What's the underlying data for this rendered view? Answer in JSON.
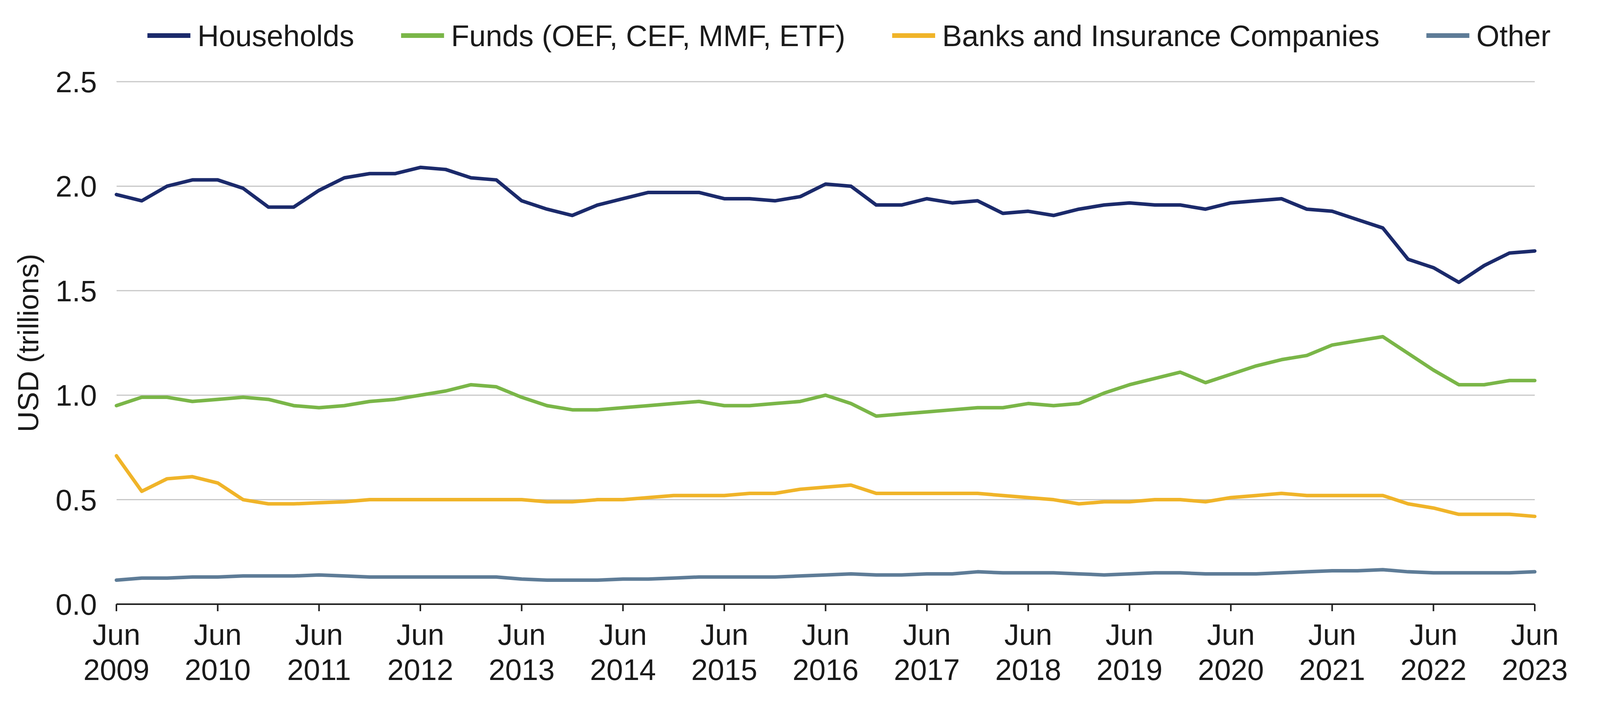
{
  "chart_data": {
    "type": "line",
    "y_label": "USD (trillions)",
    "categories": [
      "Jun 2009",
      null,
      null,
      null,
      "Jun 2010",
      null,
      null,
      null,
      "Jun 2011",
      null,
      null,
      null,
      "Jun 2012",
      null,
      null,
      null,
      "Jun 2013",
      null,
      null,
      null,
      "Jun 2014",
      null,
      null,
      null,
      "Jun 2015",
      null,
      null,
      null,
      "Jun 2016",
      null,
      null,
      null,
      "Jun 2017",
      null,
      null,
      null,
      "Jun 2018",
      null,
      null,
      null,
      "Jun 2019",
      null,
      null,
      null,
      "Jun 2020",
      null,
      null,
      null,
      "Jun 2021",
      null,
      null,
      null,
      "Jun 2022",
      null,
      null,
      null,
      "Jun 2023"
    ],
    "series": [
      {
        "name": "Households",
        "color": "#1b2a6b",
        "values": [
          1.96,
          1.93,
          2.0,
          2.03,
          2.03,
          1.99,
          1.9,
          1.9,
          1.98,
          2.04,
          2.06,
          2.06,
          2.09,
          2.08,
          2.04,
          2.03,
          1.93,
          1.89,
          1.86,
          1.91,
          1.94,
          1.97,
          1.97,
          1.97,
          1.94,
          1.94,
          1.93,
          1.95,
          2.01,
          2.0,
          1.91,
          1.91,
          1.94,
          1.92,
          1.93,
          1.87,
          1.88,
          1.86,
          1.89,
          1.91,
          1.92,
          1.91,
          1.91,
          1.89,
          1.92,
          1.93,
          1.94,
          1.89,
          1.88,
          1.84,
          1.8,
          1.65,
          1.61,
          1.54,
          1.62,
          1.68,
          1.69
        ]
      },
      {
        "name": "Funds (OEF, CEF, MMF, ETF)",
        "color": "#7ab648",
        "values": [
          0.95,
          0.99,
          0.99,
          0.97,
          0.98,
          0.99,
          0.98,
          0.95,
          0.94,
          0.95,
          0.97,
          0.98,
          1.0,
          1.02,
          1.05,
          1.04,
          0.99,
          0.95,
          0.93,
          0.93,
          0.94,
          0.95,
          0.96,
          0.97,
          0.95,
          0.95,
          0.96,
          0.97,
          1.0,
          0.96,
          0.9,
          0.91,
          0.92,
          0.93,
          0.94,
          0.94,
          0.96,
          0.95,
          0.96,
          1.01,
          1.05,
          1.08,
          1.11,
          1.06,
          1.1,
          1.14,
          1.17,
          1.19,
          1.24,
          1.26,
          1.28,
          1.2,
          1.12,
          1.05,
          1.05,
          1.07,
          1.07
        ]
      },
      {
        "name": "Banks and Insurance Companies",
        "color": "#f0b429",
        "values": [
          0.71,
          0.54,
          0.6,
          0.61,
          0.58,
          0.5,
          0.48,
          0.48,
          0.485,
          0.49,
          0.5,
          0.5,
          0.5,
          0.5,
          0.5,
          0.5,
          0.5,
          0.49,
          0.49,
          0.5,
          0.5,
          0.51,
          0.52,
          0.52,
          0.52,
          0.53,
          0.53,
          0.55,
          0.56,
          0.57,
          0.53,
          0.53,
          0.53,
          0.53,
          0.53,
          0.52,
          0.51,
          0.5,
          0.48,
          0.49,
          0.49,
          0.5,
          0.5,
          0.49,
          0.51,
          0.52,
          0.53,
          0.52,
          0.52,
          0.52,
          0.52,
          0.48,
          0.46,
          0.43,
          0.43,
          0.43,
          0.42
        ]
      },
      {
        "name": "Other",
        "color": "#5e7c97",
        "values": [
          0.115,
          0.125,
          0.125,
          0.13,
          0.13,
          0.135,
          0.135,
          0.135,
          0.14,
          0.135,
          0.13,
          0.13,
          0.13,
          0.13,
          0.13,
          0.13,
          0.12,
          0.115,
          0.115,
          0.115,
          0.12,
          0.12,
          0.125,
          0.13,
          0.13,
          0.13,
          0.13,
          0.135,
          0.14,
          0.145,
          0.14,
          0.14,
          0.145,
          0.145,
          0.155,
          0.15,
          0.15,
          0.15,
          0.145,
          0.14,
          0.145,
          0.15,
          0.15,
          0.145,
          0.145,
          0.145,
          0.15,
          0.155,
          0.16,
          0.16,
          0.165,
          0.155,
          0.15,
          0.15,
          0.15,
          0.15,
          0.155
        ]
      }
    ],
    "ylim": [
      0,
      2.5
    ],
    "yticks": [
      {
        "value": 0,
        "label": "0.0"
      },
      0.5,
      {
        "value": 1,
        "label": "1.0"
      },
      1.5,
      {
        "value": 2,
        "label": "2.0"
      },
      2.5
    ],
    "grid": true,
    "legend": "top"
  }
}
